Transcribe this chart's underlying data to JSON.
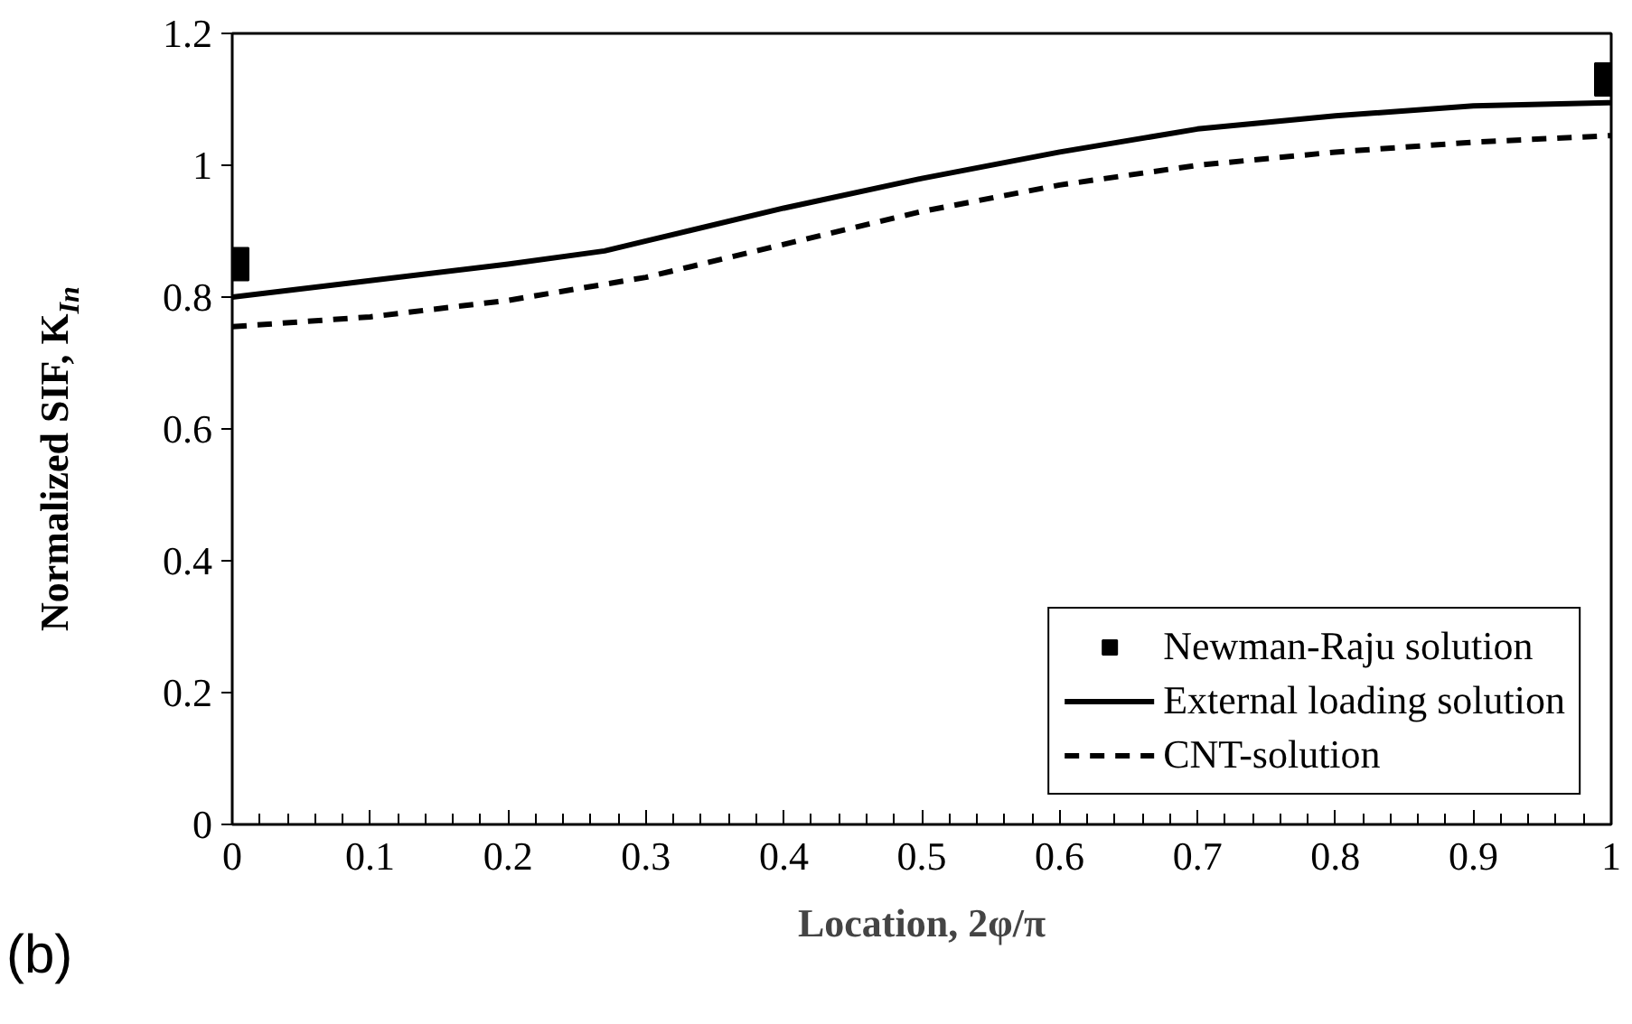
{
  "chart_data": {
    "type": "line",
    "xlabel": "Location, 2φ/π",
    "ylabel": "Normalized SIF, K$_{In}$",
    "xlim": [
      0,
      1
    ],
    "xticks": [
      0,
      0.1,
      0.2,
      0.3,
      0.4,
      0.5,
      0.6,
      0.7,
      0.8,
      0.9,
      1
    ],
    "ylim": [
      0,
      1.2
    ],
    "yticks": [
      0,
      0.2,
      0.4,
      0.6,
      0.8,
      1,
      1.2
    ],
    "grid": false,
    "legend": "bottom right",
    "series": [
      {
        "name": "Newman-Raju solution",
        "type": "scatter",
        "marker": "square",
        "color": "#000000",
        "x": [
          0,
          1
        ],
        "values": [
          0.85,
          1.13
        ]
      },
      {
        "name": "External loading solution",
        "line_style": "solid",
        "color": "#000000",
        "x": [
          0,
          0.1,
          0.2,
          0.27,
          0.3,
          0.4,
          0.5,
          0.6,
          0.7,
          0.8,
          0.9,
          1
        ],
        "values": [
          0.8,
          0.825,
          0.85,
          0.87,
          0.885,
          0.935,
          0.98,
          1.02,
          1.055,
          1.075,
          1.09,
          1.095
        ]
      },
      {
        "name": "CNT-solution",
        "line_style": "dashed",
        "color": "#000000",
        "x": [
          0,
          0.1,
          0.2,
          0.3,
          0.4,
          0.5,
          0.6,
          0.7,
          0.8,
          0.9,
          1
        ],
        "values": [
          0.755,
          0.77,
          0.795,
          0.83,
          0.88,
          0.93,
          0.97,
          1.0,
          1.02,
          1.035,
          1.045
        ]
      }
    ],
    "annotations": [
      "(b)"
    ]
  }
}
